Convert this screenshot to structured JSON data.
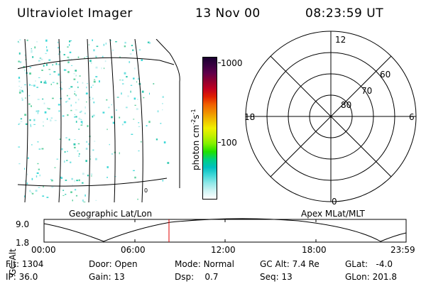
{
  "header": {
    "title": "Ultraviolet Imager",
    "date": "13 Nov 00",
    "time": "08:23:59 UT"
  },
  "colorbar": {
    "label": "photon cm",
    "label_sup": "-2",
    "label_mid": "s",
    "label_sup2": "-1",
    "ticks": [
      "1000",
      "100"
    ],
    "colors": [
      "#1a0030",
      "#3a0040",
      "#60004a",
      "#900030",
      "#c00020",
      "#e02000",
      "#f06000",
      "#f09000",
      "#f0c000",
      "#f0f000",
      "#c0f000",
      "#80f000",
      "#20e000",
      "#00d080",
      "#00c0c0",
      "#40d8d8",
      "#90e8e8",
      "#d0f4f4",
      "#ffffff"
    ]
  },
  "polar": {
    "mlt_labels": {
      "top": "12",
      "left": "18",
      "right": "6",
      "bottom": "0"
    },
    "lat_labels": [
      "60",
      "70",
      "80"
    ]
  },
  "captions": {
    "left": "Geographic Lat/Lon",
    "right": "Apex MLat/MLT"
  },
  "altitude_plot": {
    "ylabel": "GC Alt",
    "ymax": "9.0",
    "ymin": "1.8",
    "xticks": [
      "00:00",
      "06:00",
      "12:00",
      "18:00",
      "23:59"
    ]
  },
  "status": {
    "flt": {
      "label": "Flt:",
      "value": "1304"
    },
    "ip": {
      "label": "IP:",
      "value": "36.0"
    },
    "door": {
      "label": "Door:",
      "value": "Open"
    },
    "gain": {
      "label": "Gain:",
      "value": "13"
    },
    "mode": {
      "label": "Mode:",
      "value": "Normal"
    },
    "dsp": {
      "label": "Dsp:",
      "value": "0.7"
    },
    "gcalt": {
      "label": "GC Alt:",
      "value": "7.4 Re"
    },
    "seq": {
      "label": "Seq:",
      "value": "13"
    },
    "glat": {
      "label": "GLat:",
      "value": "-4.0"
    },
    "glon": {
      "label": "GLon:",
      "value": "201.8"
    }
  }
}
